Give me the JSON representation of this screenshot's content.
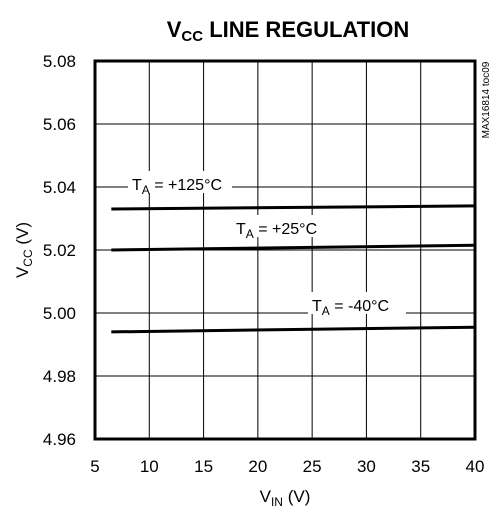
{
  "chart_data": {
    "type": "line",
    "title": {
      "main": "V",
      "sub": "CC",
      "rest": " LINE REGULATION"
    },
    "xlabel": {
      "main": "V",
      "sub": "IN",
      "rest": " (V)"
    },
    "ylabel": {
      "main": "V",
      "sub": "CC",
      "rest": " (V)"
    },
    "xlim": [
      5,
      40
    ],
    "ylim": [
      4.96,
      5.08
    ],
    "xticks": [
      5,
      10,
      15,
      20,
      25,
      30,
      35,
      40
    ],
    "xtick_labels": [
      "5",
      "10",
      "15",
      "20",
      "25",
      "30",
      "35",
      "40"
    ],
    "yticks": [
      4.96,
      4.98,
      5.0,
      5.02,
      5.04,
      5.06,
      5.08
    ],
    "ytick_labels": [
      "4.96",
      "4.98",
      "5.00",
      "5.02",
      "5.04",
      "5.06",
      "5.08"
    ],
    "grid": true,
    "watermark": "MAX16814 toc09",
    "series": [
      {
        "label": {
          "main": "T",
          "sub": "A",
          "rest": " = +125°C"
        },
        "x": [
          6.5,
          40
        ],
        "y": [
          5.033,
          5.034
        ]
      },
      {
        "label": {
          "main": "T",
          "sub": "A",
          "rest": " = +25°C"
        },
        "x": [
          6.5,
          40
        ],
        "y": [
          5.02,
          5.0215
        ]
      },
      {
        "label": {
          "main": "T",
          "sub": "A",
          "rest": " = -40°C"
        },
        "x": [
          6.5,
          40
        ],
        "y": [
          4.994,
          4.9955
        ]
      }
    ]
  }
}
